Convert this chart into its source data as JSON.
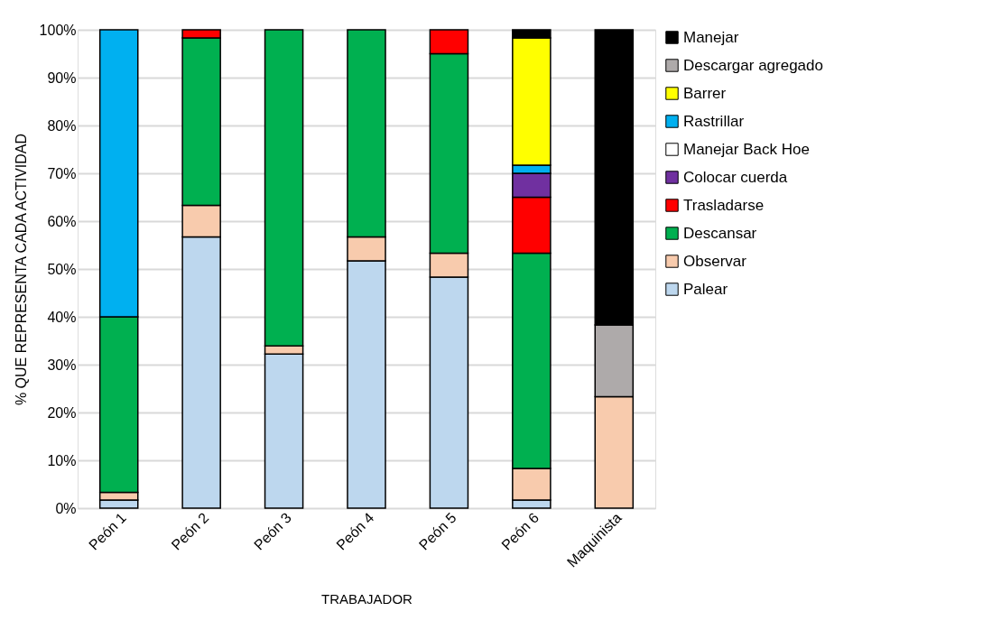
{
  "chart_data": {
    "type": "bar",
    "stacked": true,
    "xlabel": "TRABAJADOR",
    "ylabel": "% QUE REPRESENTA CADA ACTIVIDAD",
    "categories": [
      "Peón 1",
      "Peón 2",
      "Peón 3",
      "Peón 4",
      "Peón 5",
      "Peón 6",
      "Maquinista"
    ],
    "series": [
      {
        "name": "Palear",
        "color": "#bdd7ee",
        "values": [
          1.7,
          56.7,
          32.2,
          51.7,
          48.3,
          1.7,
          null
        ]
      },
      {
        "name": "Observar",
        "color": "#f8cbad",
        "values": [
          1.6,
          6.6,
          1.7,
          5.0,
          5.0,
          6.6,
          23.3
        ]
      },
      {
        "name": "Descansar",
        "color": "#00b050",
        "values": [
          36.7,
          35.0,
          66.1,
          43.3,
          41.7,
          45.0,
          null
        ]
      },
      {
        "name": "Trasladarse",
        "color": "#ff0000",
        "values": [
          null,
          1.7,
          null,
          null,
          5.0,
          11.7,
          null
        ]
      },
      {
        "name": "Colocar cuerda",
        "color": "#7030a0",
        "values": [
          null,
          null,
          null,
          null,
          null,
          5.0,
          null
        ]
      },
      {
        "name": "Manejar Back Hoe",
        "color": "#ffffff",
        "values": [
          null,
          null,
          null,
          null,
          null,
          null,
          null
        ]
      },
      {
        "name": "Rastrillar",
        "color": "#00b0f0",
        "values": [
          60.0,
          null,
          null,
          null,
          null,
          1.7,
          null
        ]
      },
      {
        "name": "Barrer",
        "color": "#ffff00",
        "values": [
          null,
          null,
          null,
          null,
          null,
          26.6,
          null
        ]
      },
      {
        "name": "Descargar agregado",
        "color": "#aeaaaa",
        "values": [
          null,
          null,
          null,
          null,
          null,
          null,
          15.0
        ]
      },
      {
        "name": "Manejar",
        "color": "#000000",
        "values": [
          null,
          null,
          null,
          null,
          null,
          1.7,
          61.7
        ]
      }
    ],
    "ylim": [
      0,
      100
    ],
    "yticks": [
      {
        "value": 0,
        "label": "0%"
      },
      {
        "value": 10,
        "label": "10%"
      },
      {
        "value": 20,
        "label": "20%"
      },
      {
        "value": 30,
        "label": "30%"
      },
      {
        "value": 40,
        "label": "40%"
      },
      {
        "value": 50,
        "label": "50%"
      },
      {
        "value": 60,
        "label": "60%"
      },
      {
        "value": 70,
        "label": "70%"
      },
      {
        "value": 80,
        "label": "80%"
      },
      {
        "value": 90,
        "label": "90%"
      },
      {
        "value": 100,
        "label": "100%"
      }
    ],
    "grid": "y",
    "legend": "right"
  }
}
